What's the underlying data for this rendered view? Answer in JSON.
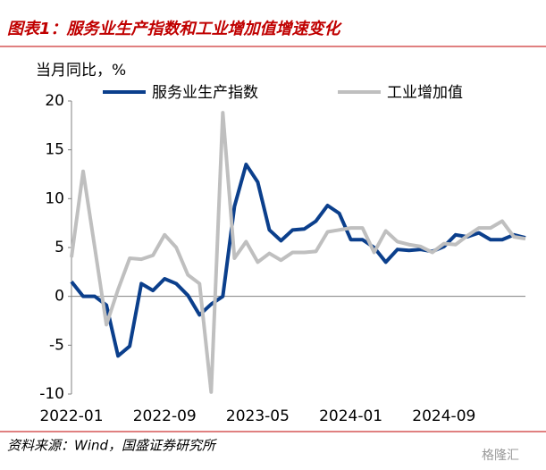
{
  "chart_data": {
    "type": "line",
    "title": "图表1：服务业生产指数和工业增加值增速变化",
    "y_label": "当月同比，%",
    "source": "资料来源：Wind，国盛证券研究所",
    "watermark": "格隆汇",
    "categories": [
      "2022-01",
      null,
      null,
      null,
      null,
      null,
      null,
      null,
      "2022-09",
      null,
      null,
      null,
      null,
      null,
      null,
      null,
      "2023-05",
      null,
      null,
      null,
      null,
      null,
      null,
      null,
      "2024-01",
      null,
      null,
      null,
      null,
      null,
      null,
      null,
      "2024-09",
      null,
      null,
      null,
      null,
      null,
      null,
      null
    ],
    "series": [
      {
        "name": "服务业生产指数",
        "color": "#0b3f8c",
        "values": [
          1.5,
          0,
          0,
          -0.9,
          -6.1,
          -5.1,
          1.3,
          0.6,
          1.8,
          1.3,
          0.1,
          -1.9,
          -0.8,
          0.0,
          9.2,
          13.5,
          11.7,
          6.8,
          5.7,
          6.8,
          6.9,
          7.7,
          9.3,
          8.5,
          5.8,
          5.8,
          5.0,
          3.5,
          4.8,
          4.7,
          4.8,
          4.6,
          5.1,
          6.3,
          6.1,
          6.5,
          5.8,
          5.8,
          6.3,
          6.0
        ]
      },
      {
        "name": "工业增加值",
        "color": "#bfbfbf",
        "values": [
          4.0,
          12.8,
          5.0,
          -2.9,
          0.7,
          3.9,
          3.8,
          4.2,
          6.3,
          5.0,
          2.2,
          1.3,
          -9.8,
          18.8,
          3.9,
          5.6,
          3.5,
          4.4,
          3.7,
          4.5,
          4.5,
          4.6,
          6.6,
          6.8,
          7.0,
          7.0,
          4.5,
          6.7,
          5.6,
          5.3,
          5.1,
          4.5,
          5.4,
          5.3,
          6.2,
          7.0,
          7.0,
          7.7,
          6.1,
          5.9
        ]
      }
    ],
    "ylim": [
      -10,
      20
    ],
    "yticks": [
      -10,
      -5,
      0,
      5,
      10,
      15,
      20
    ]
  }
}
